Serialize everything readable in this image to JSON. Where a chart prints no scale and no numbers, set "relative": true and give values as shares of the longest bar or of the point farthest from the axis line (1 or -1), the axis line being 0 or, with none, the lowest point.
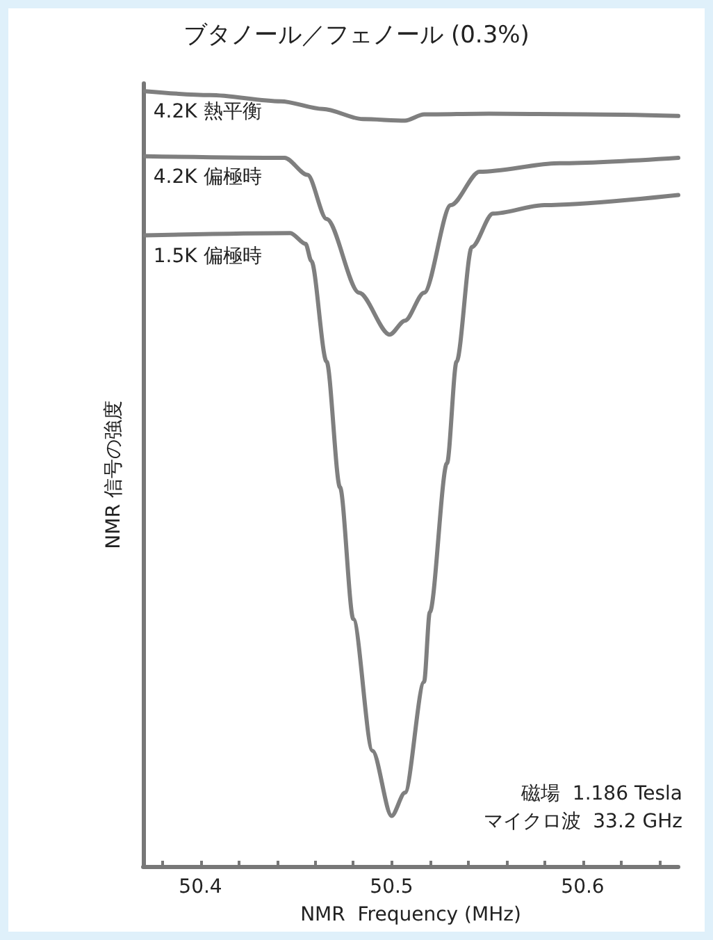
{
  "chart_data": {
    "type": "line",
    "title": "ブタノール／フェノール (0.3%)",
    "xlabel": "NMR  Frequency (MHz)",
    "ylabel": "NMR 信号の強度",
    "relative": true,
    "xlim": [
      50.37,
      50.65
    ],
    "xticks": [
      {
        "value": 50.38,
        "label": null
      },
      50.4,
      {
        "value": 50.42,
        "label": null
      },
      {
        "value": 50.44,
        "label": null
      },
      {
        "value": 50.46,
        "label": null
      },
      {
        "value": 50.48,
        "label": null
      },
      50.5,
      {
        "value": 50.52,
        "label": null
      },
      {
        "value": 50.54,
        "label": null
      },
      {
        "value": 50.56,
        "label": null
      },
      {
        "value": 50.58,
        "label": null
      },
      50.6,
      {
        "value": 50.62,
        "label": null
      },
      {
        "value": 50.64,
        "label": null
      }
    ],
    "tick_labels": "x",
    "grid": false,
    "marker": "none",
    "line_style": "solid",
    "series": [
      {
        "name": "4.2K 熱平衡",
        "color": "#7f7f7f",
        "x": [
          50.371,
          50.405,
          50.442,
          50.464,
          50.485,
          50.507,
          50.517,
          50.551,
          50.602,
          50.65
        ],
        "values": [
          1.0,
          0.995,
          0.987,
          0.977,
          0.964,
          0.962,
          0.97,
          0.971,
          0.97,
          0.968
        ]
      },
      {
        "name": "4.2K 偏極時",
        "color": "#7f7f7f",
        "x": [
          50.371,
          50.444,
          50.456,
          50.466,
          50.483,
          50.499,
          50.507,
          50.517,
          50.531,
          50.546,
          50.588,
          50.65
        ],
        "values": [
          0.916,
          0.914,
          0.892,
          0.835,
          0.74,
          0.686,
          0.704,
          0.74,
          0.853,
          0.896,
          0.907,
          0.914
        ]
      },
      {
        "name": "1.5K 偏極時",
        "color": "#7f7f7f",
        "x": [
          50.371,
          50.447,
          50.455,
          50.458,
          50.466,
          50.473,
          50.48,
          50.49,
          50.5,
          50.507,
          50.517,
          50.52,
          50.529,
          50.534,
          50.542,
          50.553,
          50.58,
          50.65
        ],
        "values": [
          0.814,
          0.817,
          0.803,
          0.781,
          0.651,
          0.489,
          0.319,
          0.149,
          0.065,
          0.095,
          0.238,
          0.328,
          0.52,
          0.651,
          0.799,
          0.842,
          0.853,
          0.866
        ]
      }
    ],
    "annotations": [
      "磁場  1.186 Tesla",
      "マイクロ波  33.2 GHz"
    ]
  }
}
